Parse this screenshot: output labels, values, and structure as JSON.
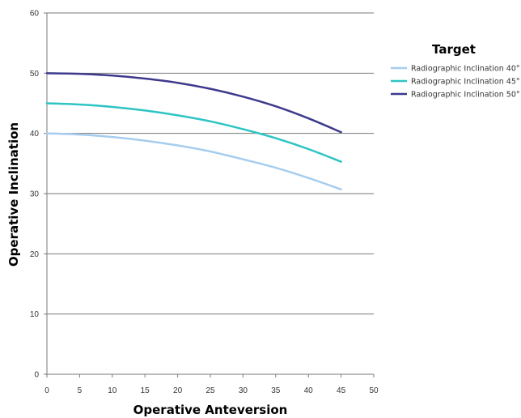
{
  "chart_data": {
    "type": "line",
    "title": "",
    "xlabel": "Operative Anteversion",
    "ylabel": "Operative Inclination",
    "xlim": [
      0,
      50
    ],
    "ylim": [
      0,
      60
    ],
    "x_ticks": [
      "0",
      "5",
      "10",
      "15",
      "20",
      "25",
      "30",
      "35",
      "40",
      "45",
      "50"
    ],
    "y_ticks": [
      "0",
      "10",
      "20",
      "30",
      "40",
      "50",
      "60"
    ],
    "grid": "horizontal",
    "legend": {
      "title": "Target",
      "placement": "right"
    },
    "x": [
      0,
      5,
      10,
      15,
      20,
      25,
      30,
      35,
      40,
      45
    ],
    "series": [
      {
        "name": "Radiographic Inclination 40°",
        "color": "#a7cdee",
        "values": [
          40.0,
          39.8,
          39.4,
          38.8,
          38.0,
          37.0,
          35.7,
          34.3,
          32.6,
          30.7
        ]
      },
      {
        "name": "Radiographic Inclination 45°",
        "color": "#2ec4c4",
        "values": [
          45.0,
          44.8,
          44.4,
          43.8,
          43.0,
          42.0,
          40.7,
          39.2,
          37.4,
          35.3
        ]
      },
      {
        "name": "Radiographic Inclination 50°",
        "color": "#3d3a8c",
        "values": [
          50.0,
          49.9,
          49.6,
          49.1,
          48.4,
          47.4,
          46.1,
          44.5,
          42.5,
          40.2
        ]
      }
    ]
  }
}
